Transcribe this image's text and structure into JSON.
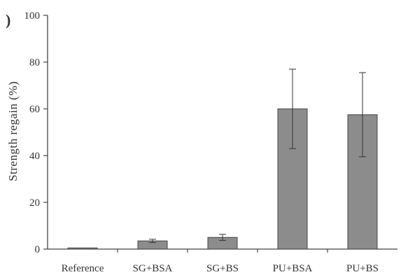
{
  "panel_label": ")",
  "chart_data": {
    "type": "bar",
    "categories": [
      "Reference",
      "SG+BSA",
      "SG+BS",
      "PU+BSA",
      "PU+BS"
    ],
    "values": [
      0.5,
      3.5,
      5,
      60,
      57.5
    ],
    "errors": [
      0,
      0.7,
      1.3,
      17,
      18
    ],
    "ylabel": "Strength regain (%)",
    "ylim": [
      0,
      100
    ],
    "yticks": [
      0,
      20,
      40,
      60,
      80,
      100
    ],
    "bar_color": "#8c8c8c",
    "grid": false
  }
}
